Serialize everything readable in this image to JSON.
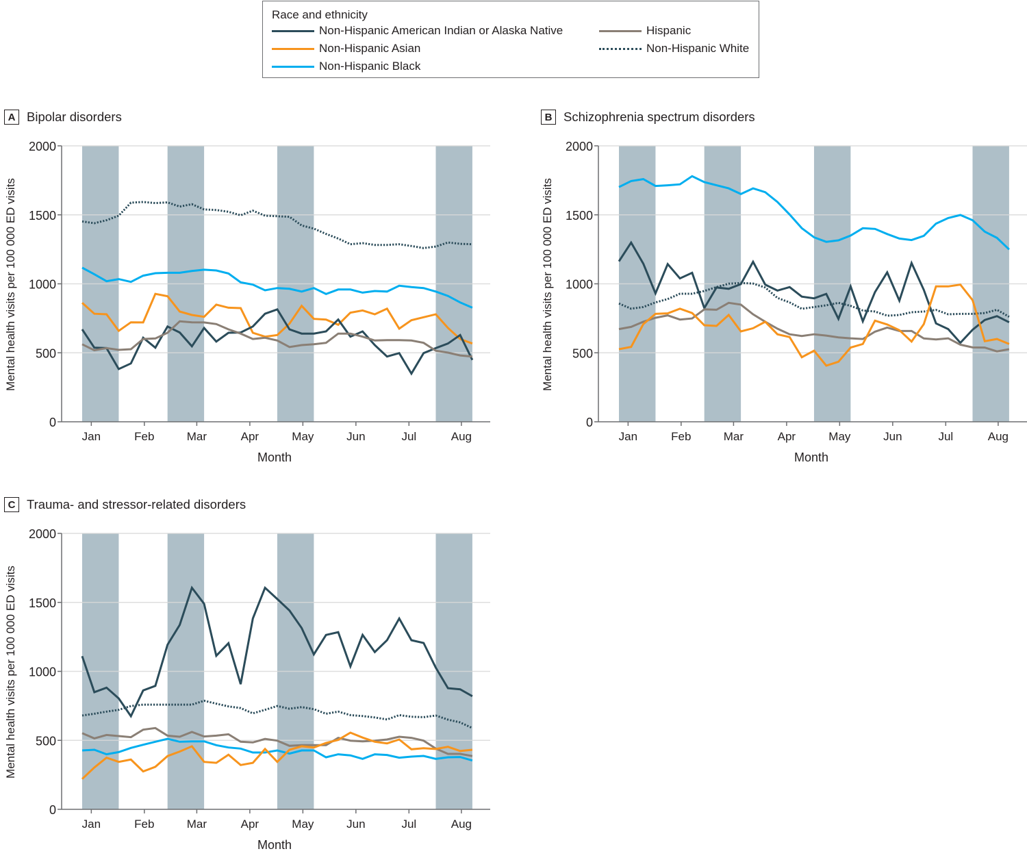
{
  "legend": {
    "title": "Race and ethnicity",
    "items": [
      {
        "key": "aian",
        "label": "Non-Hispanic American Indian or Alaska Native",
        "color": "#2b4c5a",
        "style": "solid"
      },
      {
        "key": "asian",
        "label": "Non-Hispanic Asian",
        "color": "#f7941d",
        "style": "solid"
      },
      {
        "key": "black",
        "label": "Non-Hispanic Black",
        "color": "#00aeef",
        "style": "solid"
      },
      {
        "key": "hispanic",
        "label": "Hispanic",
        "color": "#8a7f75",
        "style": "solid"
      },
      {
        "key": "white",
        "label": "Non-Hispanic White",
        "color": "#2b4c5a",
        "style": "dotted"
      }
    ]
  },
  "colors": {
    "shaded_band": "#aebfc8",
    "gridline": "#d9d9d9",
    "axis": "#6d6e71"
  },
  "chart_data": [
    {
      "panel": "A",
      "type": "line",
      "title": "Bipolar disorders",
      "xlabel": "Month",
      "ylabel": "Mental health visits per 100 000 ED visits",
      "ylim": [
        0,
        2000
      ],
      "yticks": [
        0,
        500,
        1000,
        1500,
        2000
      ],
      "xtick_labels": [
        "Jan",
        "Feb",
        "Mar",
        "Apr",
        "May",
        "Jun",
        "Jul",
        "Aug"
      ],
      "xtick_weeks": [
        0.75,
        5.1,
        9.4,
        13.75,
        18.1,
        22.45,
        26.8,
        31.1
      ],
      "x_weeks": 33,
      "shaded_week_ranges": [
        [
          0,
          3
        ],
        [
          7,
          10
        ],
        [
          16,
          19
        ],
        [
          29,
          32
        ]
      ],
      "grid": true,
      "series": [
        {
          "key": "white",
          "name": "Non-Hispanic White",
          "values": [
            1452,
            1439,
            1461,
            1494,
            1588,
            1593,
            1585,
            1590,
            1560,
            1577,
            1539,
            1535,
            1522,
            1497,
            1530,
            1494,
            1490,
            1486,
            1423,
            1400,
            1362,
            1328,
            1287,
            1295,
            1282,
            1282,
            1287,
            1274,
            1259,
            1270,
            1300,
            1290,
            1287
          ]
        },
        {
          "key": "black",
          "name": "Non-Hispanic Black",
          "values": [
            1117,
            1069,
            1019,
            1034,
            1014,
            1059,
            1077,
            1080,
            1080,
            1093,
            1102,
            1097,
            1075,
            1011,
            994,
            953,
            969,
            964,
            944,
            969,
            926,
            959,
            959,
            936,
            948,
            944,
            986,
            976,
            969,
            944,
            912,
            865,
            827
          ]
        },
        {
          "key": "asian",
          "name": "Non-Hispanic Asian",
          "values": [
            862,
            783,
            779,
            659,
            721,
            720,
            927,
            910,
            799,
            774,
            761,
            849,
            827,
            824,
            645,
            617,
            629,
            711,
            840,
            746,
            741,
            703,
            791,
            807,
            779,
            820,
            675,
            736,
            758,
            779,
            680,
            600,
            567
          ]
        },
        {
          "key": "aian",
          "name": "Non-Hispanic American Indian or Alaska Native",
          "values": [
            670,
            537,
            534,
            382,
            423,
            609,
            537,
            691,
            647,
            547,
            680,
            581,
            645,
            647,
            691,
            783,
            815,
            670,
            639,
            639,
            655,
            741,
            617,
            655,
            556,
            473,
            498,
            349,
            498,
            534,
            567,
            629,
            448
          ]
        },
        {
          "key": "hispanic",
          "name": "Hispanic",
          "values": [
            562,
            518,
            534,
            521,
            526,
            600,
            604,
            645,
            728,
            721,
            720,
            708,
            670,
            639,
            600,
            609,
            589,
            542,
            556,
            562,
            572,
            639,
            639,
            617,
            589,
            592,
            592,
            589,
            572,
            515,
            501,
            481,
            473
          ]
        }
      ]
    },
    {
      "panel": "B",
      "type": "line",
      "title": "Schizophrenia spectrum disorders",
      "xlabel": "Month",
      "ylabel": "Mental health visits per 100 000 ED visits",
      "ylim": [
        0,
        2000
      ],
      "yticks": [
        0,
        500,
        1000,
        1500,
        2000
      ],
      "xtick_labels": [
        "Jan",
        "Feb",
        "Mar",
        "Apr",
        "May",
        "Jun",
        "Jul",
        "Aug"
      ],
      "xtick_weeks": [
        0.75,
        5.1,
        9.4,
        13.75,
        18.1,
        22.45,
        26.8,
        31.1
      ],
      "x_weeks": 33,
      "shaded_week_ranges": [
        [
          0,
          3
        ],
        [
          7,
          10
        ],
        [
          16,
          19
        ],
        [
          29,
          32
        ]
      ],
      "grid": true,
      "series": [
        {
          "key": "black",
          "name": "Non-Hispanic Black",
          "values": [
            1701,
            1745,
            1759,
            1709,
            1714,
            1721,
            1780,
            1737,
            1714,
            1692,
            1651,
            1692,
            1664,
            1593,
            1502,
            1403,
            1337,
            1304,
            1315,
            1350,
            1403,
            1398,
            1361,
            1328,
            1317,
            1348,
            1436,
            1477,
            1499,
            1461,
            1378,
            1333,
            1249
          ]
        },
        {
          "key": "aian",
          "name": "Non-Hispanic American Indian or Alaska Native",
          "values": [
            1163,
            1299,
            1146,
            931,
            1143,
            1039,
            1080,
            824,
            973,
            964,
            998,
            1160,
            994,
            951,
            976,
            907,
            895,
            927,
            746,
            981,
            728,
            940,
            1083,
            878,
            1151,
            956,
            713,
            672,
            572,
            667,
            738,
            766,
            721
          ]
        },
        {
          "key": "white",
          "name": "Non-Hispanic White",
          "values": [
            857,
            820,
            832,
            865,
            890,
            928,
            928,
            948,
            976,
            1001,
            1006,
            1002,
            973,
            898,
            865,
            819,
            832,
            844,
            862,
            840,
            807,
            799,
            769,
            774,
            794,
            799,
            811,
            779,
            782,
            782,
            788,
            812,
            761
          ]
        },
        {
          "key": "hispanic",
          "name": "Hispanic",
          "values": [
            672,
            688,
            725,
            754,
            771,
            741,
            749,
            815,
            812,
            862,
            849,
            779,
            725,
            675,
            634,
            622,
            634,
            625,
            612,
            605,
            600,
            653,
            683,
            658,
            658,
            604,
            597,
            605,
            559,
            539,
            538,
            510,
            526
          ]
        },
        {
          "key": "asian",
          "name": "Non-Hispanic Asian",
          "values": [
            526,
            543,
            708,
            782,
            786,
            820,
            788,
            700,
            695,
            774,
            655,
            678,
            725,
            634,
            614,
            468,
            515,
            407,
            435,
            538,
            564,
            733,
            705,
            664,
            581,
            708,
            981,
            981,
            994,
            882,
            584,
            600,
            564
          ]
        }
      ]
    },
    {
      "panel": "C",
      "type": "line",
      "title": "Trauma- and stressor-related disorders",
      "xlabel": "Month",
      "ylabel": "Mental health visits per 100 000 ED visits",
      "ylim": [
        0,
        2000
      ],
      "yticks": [
        0,
        500,
        1000,
        1500,
        2000
      ],
      "xtick_labels": [
        "Jan",
        "Feb",
        "Mar",
        "Apr",
        "May",
        "Jun",
        "Jul",
        "Aug"
      ],
      "xtick_weeks": [
        0.75,
        5.1,
        9.4,
        13.75,
        18.1,
        22.45,
        26.8,
        31.1
      ],
      "x_weeks": 33,
      "shaded_week_ranges": [
        [
          0,
          3
        ],
        [
          7,
          10
        ],
        [
          16,
          19
        ],
        [
          29,
          32
        ]
      ],
      "grid": true,
      "series": [
        {
          "key": "aian",
          "name": "Non-Hispanic American Indian or Alaska Native",
          "values": [
            1110,
            849,
            882,
            804,
            675,
            862,
            895,
            1193,
            1337,
            1606,
            1490,
            1113,
            1204,
            907,
            1383,
            1606,
            1524,
            1441,
            1314,
            1123,
            1264,
            1284,
            1036,
            1264,
            1140,
            1226,
            1383,
            1226,
            1206,
            1027,
            878,
            870,
            820
          ]
        },
        {
          "key": "white",
          "name": "Non-Hispanic White",
          "values": [
            680,
            693,
            708,
            721,
            749,
            759,
            759,
            759,
            759,
            759,
            787,
            766,
            746,
            734,
            696,
            721,
            749,
            729,
            741,
            726,
            693,
            708,
            683,
            676,
            666,
            651,
            683,
            671,
            668,
            680,
            650,
            630,
            589
          ]
        },
        {
          "key": "hispanic",
          "name": "Hispanic",
          "values": [
            552,
            514,
            539,
            531,
            523,
            577,
            589,
            534,
            526,
            561,
            528,
            534,
            544,
            490,
            485,
            510,
            498,
            460,
            465,
            465,
            465,
            518,
            498,
            493,
            498,
            506,
            526,
            518,
            498,
            440,
            402,
            402,
            386
          ]
        },
        {
          "key": "black",
          "name": "Non-Hispanic Black",
          "values": [
            427,
            432,
            399,
            415,
            445,
            468,
            490,
            511,
            490,
            493,
            493,
            465,
            448,
            440,
            412,
            412,
            427,
            404,
            427,
            427,
            377,
            399,
            391,
            366,
            399,
            394,
            374,
            382,
            387,
            366,
            377,
            379,
            354
          ]
        },
        {
          "key": "asian",
          "name": "Non-Hispanic Asian",
          "values": [
            220,
            303,
            374,
            344,
            361,
            275,
            308,
            386,
            419,
            457,
            344,
            337,
            396,
            321,
            337,
            437,
            344,
            432,
            457,
            448,
            481,
            503,
            556,
            520,
            490,
            478,
            506,
            435,
            443,
            437,
            453,
            423,
            432
          ]
        }
      ]
    }
  ]
}
